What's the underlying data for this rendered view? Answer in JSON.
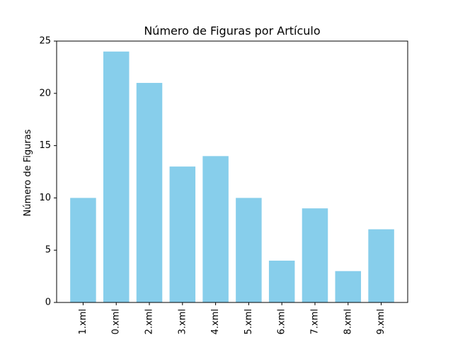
{
  "chart_data": {
    "type": "bar",
    "title": "Número de Figuras por Artículo",
    "xlabel": "",
    "ylabel": "Número de Figuras",
    "categories": [
      "1.xml",
      "0.xml",
      "2.xml",
      "3.xml",
      "4.xml",
      "5.xml",
      "6.xml",
      "7.xml",
      "8.xml",
      "9.xml"
    ],
    "values": [
      10,
      24,
      21,
      13,
      14,
      10,
      4,
      9,
      3,
      7
    ],
    "ylim": [
      0,
      25
    ],
    "yticks": [
      0,
      5,
      10,
      15,
      20,
      25
    ],
    "bar_color": "#87ceeb",
    "grid": false,
    "x_tick_rotation": "vertical"
  }
}
